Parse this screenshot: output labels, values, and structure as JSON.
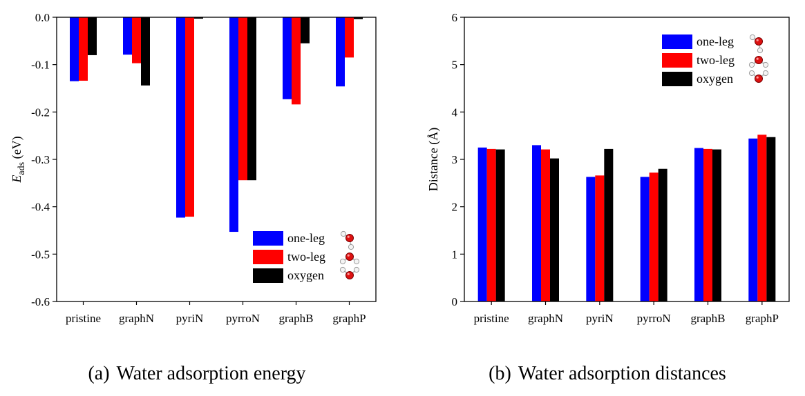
{
  "chart_data": [
    {
      "type": "bar",
      "caption_label": "(a)",
      "caption_text": "Water adsorption energy",
      "ylabel_main": "E",
      "ylabel_sub": "ads",
      "ylabel_unit": " (eV)",
      "ylim": [
        -0.6,
        0.0
      ],
      "yticks": [
        0.0,
        -0.1,
        -0.2,
        -0.3,
        -0.4,
        -0.5,
        -0.6
      ],
      "ytick_labels": [
        "0.0",
        "-0.1",
        "-0.2",
        "-0.3",
        "-0.4",
        "-0.5",
        "-0.6"
      ],
      "categories": [
        "pristine",
        "graphN",
        "pyriN",
        "pyrroN",
        "graphB",
        "graphP"
      ],
      "legend_position": "bottom-right",
      "series": [
        {
          "name": "one-leg",
          "color": "#0000ff",
          "values": [
            -0.135,
            -0.079,
            -0.423,
            -0.453,
            -0.173,
            -0.146
          ]
        },
        {
          "name": "two-leg",
          "color": "#ff0000",
          "values": [
            -0.134,
            -0.097,
            -0.421,
            -0.344,
            -0.184,
            -0.085
          ]
        },
        {
          "name": "oxygen",
          "color": "#000000",
          "values": [
            -0.08,
            -0.144,
            -0.003,
            -0.344,
            -0.055,
            -0.004
          ]
        }
      ]
    },
    {
      "type": "bar",
      "caption_label": "(b)",
      "caption_text": "Water adsorption distances",
      "ylabel": "Distance (Å)",
      "ylim": [
        0,
        6
      ],
      "yticks": [
        0,
        1,
        2,
        3,
        4,
        5,
        6
      ],
      "ytick_labels": [
        "0",
        "1",
        "2",
        "3",
        "4",
        "5",
        "6"
      ],
      "categories": [
        "pristine",
        "graphN",
        "pyriN",
        "pyrroN",
        "graphB",
        "graphP"
      ],
      "legend_position": "top-right",
      "series": [
        {
          "name": "one-leg",
          "color": "#0000ff",
          "values": [
            3.25,
            3.3,
            2.63,
            2.63,
            3.24,
            3.44
          ]
        },
        {
          "name": "two-leg",
          "color": "#ff0000",
          "values": [
            3.22,
            3.21,
            2.66,
            2.72,
            3.22,
            3.52
          ]
        },
        {
          "name": "oxygen",
          "color": "#000000",
          "values": [
            3.21,
            3.02,
            3.22,
            2.8,
            3.21,
            3.47
          ]
        }
      ]
    }
  ]
}
